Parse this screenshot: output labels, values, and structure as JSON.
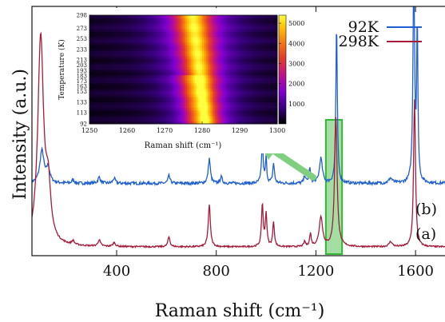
{
  "chart_data": [
    {
      "type": "line",
      "xlabel": "Raman shift (cm⁻¹)",
      "ylabel": "Intensity (a.u.)",
      "xlim": [
        60,
        1760
      ],
      "xticks": [
        400,
        800,
        1200,
        1600
      ],
      "y_ticklabels_shown": false,
      "legend": {
        "placement": "top-right"
      },
      "series": [
        {
          "name": "92K",
          "label": "(b)",
          "color": "#1f5fcf",
          "baseline": 0.29,
          "noise": 0.006,
          "peaks": [
            {
              "x": 100,
              "h": 0.13,
              "w": 10
            },
            {
              "x": 125,
              "h": 0.06,
              "w": 8
            },
            {
              "x": 225,
              "h": 0.015,
              "w": 5
            },
            {
              "x": 330,
              "h": 0.025,
              "w": 6
            },
            {
              "x": 390,
              "h": 0.02,
              "w": 6
            },
            {
              "x": 610,
              "h": 0.03,
              "w": 5
            },
            {
              "x": 772,
              "h": 0.1,
              "w": 5
            },
            {
              "x": 820,
              "h": 0.025,
              "w": 5
            },
            {
              "x": 985,
              "h": 0.16,
              "w": 4
            },
            {
              "x": 1000,
              "h": 0.1,
              "w": 3
            },
            {
              "x": 1030,
              "h": 0.08,
              "w": 4
            },
            {
              "x": 1155,
              "h": 0.03,
              "w": 4
            },
            {
              "x": 1175,
              "h": 0.06,
              "w": 4
            },
            {
              "x": 1220,
              "h": 0.1,
              "w": 7
            },
            {
              "x": 1283,
              "h": 0.64,
              "w": 3.5
            },
            {
              "x": 1500,
              "h": 0.02,
              "w": 8
            },
            {
              "x": 1593,
              "h": 0.84,
              "w": 4
            },
            {
              "x": 1607,
              "h": 0.62,
              "w": 3
            }
          ]
        },
        {
          "name": "298K",
          "label": "(a)",
          "color": "#a51c3a",
          "baseline": 0.035,
          "noise": 0.003,
          "peaks": [
            {
              "x": 95,
              "h": 0.83,
              "w": 14
            },
            {
              "x": 125,
              "h": 0.2,
              "w": 12
            },
            {
              "x": 225,
              "h": 0.015,
              "w": 6
            },
            {
              "x": 330,
              "h": 0.025,
              "w": 6
            },
            {
              "x": 390,
              "h": 0.015,
              "w": 6
            },
            {
              "x": 610,
              "h": 0.04,
              "w": 5
            },
            {
              "x": 772,
              "h": 0.17,
              "w": 5
            },
            {
              "x": 985,
              "h": 0.17,
              "w": 4
            },
            {
              "x": 1000,
              "h": 0.13,
              "w": 4
            },
            {
              "x": 1030,
              "h": 0.1,
              "w": 4
            },
            {
              "x": 1155,
              "h": 0.02,
              "w": 4
            },
            {
              "x": 1178,
              "h": 0.05,
              "w": 4
            },
            {
              "x": 1220,
              "h": 0.12,
              "w": 8
            },
            {
              "x": 1280,
              "h": 0.52,
              "w": 6
            },
            {
              "x": 1500,
              "h": 0.02,
              "w": 8
            },
            {
              "x": 1596,
              "h": 0.59,
              "w": 4.5
            }
          ]
        }
      ],
      "highlight_region": {
        "x0": 1240,
        "x1": 1305,
        "color": "#33b833"
      }
    },
    {
      "type": "heatmap",
      "xlabel": "Raman shift (cm⁻¹)",
      "ylabel": "Temperature (K)",
      "xlim": [
        1250,
        1300
      ],
      "ylim": [
        92,
        298
      ],
      "xticks": [
        1250,
        1260,
        1270,
        1280,
        1290,
        1300
      ],
      "yticks": [
        92,
        113,
        133,
        153,
        163,
        173,
        183,
        193,
        203,
        213,
        233,
        253,
        273,
        298
      ],
      "colorbar": {
        "min": 0,
        "max": 5400,
        "ticks": [
          1000,
          2000,
          3000,
          4000,
          5000
        ]
      },
      "colormap": "gnuplot",
      "peak_center_low_T": 1281,
      "peak_center_high_T": 1277.5
    }
  ]
}
